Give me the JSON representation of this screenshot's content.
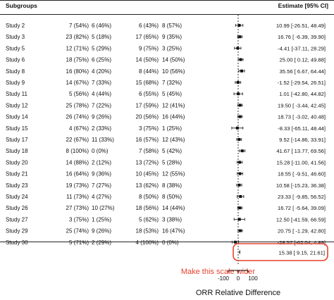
{
  "header": {
    "subgroups_label": "Subgroups",
    "estimate_label": "Estimate [95% CI]"
  },
  "rows": [
    {
      "study": "Study 2",
      "col_a": "7 (54%)",
      "col_b": "6 (46%)",
      "col_c": "6 (43%)",
      "col_d": "8 (57%)",
      "estimate_text": "10.99 [-26.51, 48.49]"
    },
    {
      "study": "Study 3",
      "col_a": "23 (82%)",
      "col_b": "5 (18%)",
      "col_c": "17 (65%)",
      "col_d": "9 (35%)",
      "estimate_text": "16.76 [ -6.39, 39.90]"
    },
    {
      "study": "Study 5",
      "col_a": "12 (71%)",
      "col_b": "5 (29%)",
      "col_c": "9 (75%)",
      "col_d": "3 (25%)",
      "estimate_text": "-4.41 [-37.11, 28.29]"
    },
    {
      "study": "Study 6",
      "col_a": "18 (75%)",
      "col_b": "6 (25%)",
      "col_c": "14 (50%)",
      "col_d": "14 (50%)",
      "estimate_text": "25.00 [ 0.12, 49.88]"
    },
    {
      "study": "Study 8",
      "col_a": "16 (80%)",
      "col_b": "4 (20%)",
      "col_c": "8 (44%)",
      "col_d": "10 (56%)",
      "estimate_text": "35.56 [ 6.67, 64.44]"
    },
    {
      "study": "Study 9",
      "col_a": "14 (67%)",
      "col_b": "7 (33%)",
      "col_c": "15 (68%)",
      "col_d": "7 (32%)",
      "estimate_text": "-1.52 [-29.54, 26.51]"
    },
    {
      "study": "Study 11",
      "col_a": "5 (56%)",
      "col_b": "4 (44%)",
      "col_c": "6 (55%)",
      "col_d": "5 (45%)",
      "estimate_text": "1.01 [-42.80, 44.82]"
    },
    {
      "study": "Study 12",
      "col_a": "25 (78%)",
      "col_b": "7 (22%)",
      "col_c": "17 (59%)",
      "col_d": "12 (41%)",
      "estimate_text": "19.50 [ -3.44, 42.45]"
    },
    {
      "study": "Study 14",
      "col_a": "26 (74%)",
      "col_b": "9 (26%)",
      "col_c": "20 (56%)",
      "col_d": "16 (44%)",
      "estimate_text": "18.73 [ -3.02, 40.48]"
    },
    {
      "study": "Study 15",
      "col_a": "4 (67%)",
      "col_b": "2 (33%)",
      "col_c": "3 (75%)",
      "col_d": "1 (25%)",
      "estimate_text": "-8.33 [-65.11, 48.44]"
    },
    {
      "study": "Study 17",
      "col_a": "22 (67%)",
      "col_b": "11 (33%)",
      "col_c": "16 (57%)",
      "col_d": "12 (43%)",
      "estimate_text": "9.52 [-14.86, 33.91]"
    },
    {
      "study": "Study 18",
      "col_a": "8 (100%)",
      "col_b": "0 (0%)",
      "col_c": "7 (58%)",
      "col_d": "5 (42%)",
      "estimate_text": "41.67 [ 13.77, 69.56]"
    },
    {
      "study": "Study 20",
      "col_a": "14 (88%)",
      "col_b": "2 (12%)",
      "col_c": "13 (72%)",
      "col_d": "5 (28%)",
      "estimate_text": "15.28 [-11.00, 41.56]"
    },
    {
      "study": "Study 21",
      "col_a": "16 (64%)",
      "col_b": "9 (36%)",
      "col_c": "10 (45%)",
      "col_d": "12 (55%)",
      "estimate_text": "18.55 [ -9.51, 46.60]"
    },
    {
      "study": "Study 23",
      "col_a": "19 (73%)",
      "col_b": "7 (27%)",
      "col_c": "13 (62%)",
      "col_d": "8 (38%)",
      "estimate_text": "10.58 [-15.23, 36.38]"
    },
    {
      "study": "Study 24",
      "col_a": "11 (73%)",
      "col_b": "4 (27%)",
      "col_c": "8 (50%)",
      "col_d": "8 (50%)",
      "estimate_text": "23.33 [ -9.85, 56.52]"
    },
    {
      "study": "Study 26",
      "col_a": "27 (73%)",
      "col_b": "10 (27%)",
      "col_c": "18 (56%)",
      "col_d": "14 (44%)",
      "estimate_text": "16.72 [ -5.64, 39.09]"
    },
    {
      "study": "Study 27",
      "col_a": "3 (75%)",
      "col_b": "1 (25%)",
      "col_c": "5 (62%)",
      "col_d": "3 (38%)",
      "estimate_text": "12.50 [-41.59, 66.59]"
    },
    {
      "study": "Study 29",
      "col_a": "25 (74%)",
      "col_b": "9 (26%)",
      "col_c": "18 (53%)",
      "col_d": "16 (47%)",
      "estimate_text": "20.75 [ -1.29, 42.80]"
    },
    {
      "study": "Study 30",
      "col_a": "5 (71%)",
      "col_b": "2 (29%)",
      "col_c": "4 (100%)",
      "col_d": "0 (0%)",
      "estimate_text": "-28.57 [-62.04, 4.89]"
    }
  ],
  "summary": {
    "estimate_text": "15.38 [ 9.15, 21.61]"
  },
  "annotation": {
    "text": "Make this scale wider",
    "color": "#e8412c"
  },
  "chart_data": {
    "type": "scatter",
    "subtype": "forest-plot",
    "title": "",
    "xlabel": "ORR Relative Difference",
    "ylabel": "",
    "xticks": [
      -100,
      0,
      100
    ],
    "xtick_labels": [
      "-100",
      "0",
      "100"
    ],
    "xlim": [
      -100,
      100
    ],
    "reference_line": 0,
    "categories": [
      "Study 2",
      "Study 3",
      "Study 5",
      "Study 6",
      "Study 8",
      "Study 9",
      "Study 11",
      "Study 12",
      "Study 14",
      "Study 15",
      "Study 17",
      "Study 18",
      "Study 20",
      "Study 21",
      "Study 23",
      "Study 24",
      "Study 26",
      "Study 27",
      "Study 29",
      "Study 30"
    ],
    "estimates": [
      10.99,
      16.76,
      -4.41,
      25.0,
      35.56,
      -1.52,
      1.01,
      19.5,
      18.73,
      -8.33,
      9.52,
      41.67,
      15.28,
      18.55,
      10.58,
      23.33,
      16.72,
      12.5,
      20.75,
      -28.57
    ],
    "ci_lower": [
      -26.51,
      -6.39,
      -37.11,
      0.12,
      6.67,
      -29.54,
      -42.8,
      -3.44,
      -3.02,
      -65.11,
      -14.86,
      13.77,
      -11.0,
      -9.51,
      -15.23,
      -9.85,
      -5.64,
      -41.59,
      -1.29,
      -62.04
    ],
    "ci_upper": [
      48.49,
      39.9,
      28.29,
      49.88,
      64.44,
      26.51,
      44.82,
      42.45,
      40.48,
      48.44,
      33.91,
      69.56,
      41.56,
      46.6,
      36.38,
      56.52,
      39.09,
      66.59,
      42.8,
      4.89
    ],
    "summary": {
      "estimate": 15.38,
      "ci_lower": 9.15,
      "ci_upper": 21.61
    }
  }
}
